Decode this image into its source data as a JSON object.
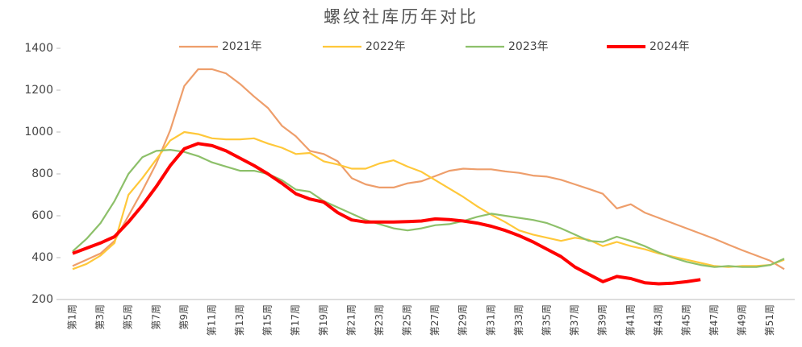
{
  "chart_data": {
    "type": "line",
    "title": "螺纹社库历年对比",
    "categories": [
      "第1周",
      null,
      "第3周",
      null,
      "第5周",
      null,
      "第7周",
      null,
      "第9周",
      null,
      "第11周",
      null,
      "第13周",
      null,
      "第15周",
      null,
      "第17周",
      null,
      "第19周",
      null,
      "第21周",
      null,
      "第23周",
      null,
      "第25周",
      null,
      "第27周",
      null,
      "第29周",
      null,
      "第31周",
      null,
      "第33周",
      null,
      "第35周",
      null,
      "第37周",
      null,
      "第39周",
      null,
      "第41周",
      null,
      "第43周",
      null,
      "第45周",
      null,
      "第47周",
      null,
      "第49周",
      null,
      "第51周",
      null
    ],
    "series": [
      {
        "name": "2021年",
        "color": "#ee9e6b",
        "values": [
          360,
          390,
          420,
          480,
          600,
          720,
          850,
          1010,
          1220,
          1300,
          1300,
          1280,
          1230,
          1170,
          1115,
          1030,
          980,
          910,
          895,
          860,
          780,
          750,
          735,
          735,
          755,
          765,
          790,
          815,
          825,
          822,
          822,
          812,
          805,
          792,
          787,
          772,
          750,
          728,
          705,
          635,
          655,
          615,
          590,
          565,
          540,
          515,
          490,
          462,
          435,
          410,
          385,
          345
        ]
      },
      {
        "name": "2022年",
        "color": "#ffc83a",
        "values": [
          345,
          370,
          410,
          470,
          700,
          780,
          870,
          960,
          1000,
          990,
          970,
          965,
          965,
          970,
          945,
          925,
          895,
          900,
          860,
          845,
          825,
          825,
          850,
          865,
          835,
          810,
          770,
          730,
          690,
          645,
          605,
          570,
          530,
          510,
          495,
          480,
          495,
          485,
          455,
          475,
          455,
          440,
          420,
          405,
          390,
          375,
          360,
          355,
          360,
          360,
          365,
          390
        ]
      },
      {
        "name": "2023年",
        "color": "#8dc06a",
        "values": [
          430,
          490,
          565,
          670,
          800,
          880,
          910,
          915,
          905,
          885,
          855,
          835,
          815,
          815,
          800,
          770,
          725,
          715,
          670,
          640,
          610,
          580,
          560,
          540,
          530,
          540,
          555,
          560,
          575,
          595,
          610,
          600,
          590,
          580,
          565,
          540,
          510,
          480,
          475,
          500,
          480,
          455,
          425,
          400,
          380,
          365,
          355,
          360,
          355,
          355,
          365,
          395
        ]
      },
      {
        "name": "2024年",
        "color": "#ff0000",
        "values": [
          420,
          445,
          470,
          500,
          570,
          650,
          740,
          840,
          920,
          945,
          935,
          910,
          875,
          840,
          800,
          755,
          705,
          680,
          665,
          615,
          580,
          570,
          570,
          570,
          572,
          575,
          585,
          582,
          575,
          565,
          550,
          530,
          505,
          475,
          440,
          405,
          355,
          320,
          285,
          310,
          300,
          280,
          275,
          278,
          285,
          295,
          null,
          null,
          null,
          null,
          null,
          null
        ]
      }
    ],
    "ylim": [
      200,
      1400
    ],
    "yticks": [
      200,
      400,
      600,
      800,
      1000,
      1200,
      1400
    ]
  }
}
